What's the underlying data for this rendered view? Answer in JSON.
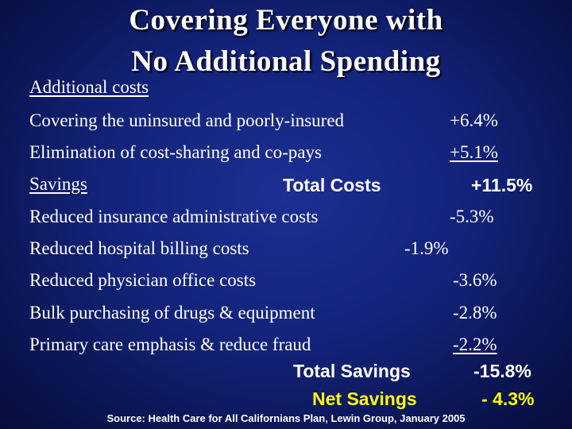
{
  "title_line1": "Covering Everyone with",
  "title_line2": "No Additional Spending",
  "additional_heading": "Additional costs",
  "costs": [
    {
      "label": "Covering the uninsured and poorly-insured",
      "value": "+6.4%"
    },
    {
      "label": "Elimination of cost-sharing and co-pays",
      "value": "+5.1%"
    }
  ],
  "savings_heading": "Savings",
  "total_costs_label": "Total Costs",
  "total_costs_value": "+11.5%",
  "savings": [
    {
      "label": "Reduced insurance administrative costs",
      "value": "-5.3%"
    },
    {
      "label": "Reduced hospital billing costs",
      "value": "-1.9%"
    },
    {
      "label": "Reduced physician office costs",
      "value": "-3.6%"
    },
    {
      "label": "Bulk purchasing of drugs & equipment",
      "value": "-2.8%"
    },
    {
      "label": "Primary care emphasis & reduce fraud",
      "value": "-2.2%"
    }
  ],
  "total_savings_label": "Total Savings",
  "total_savings_value": "-15.8%",
  "net_savings_label": "Net Savings",
  "net_savings_value": "- 4.3%",
  "source": "Source: Health Care for All Californians Plan, Lewin Group, January 2005",
  "colors": {
    "background": "#13237a",
    "text": "#ffffff",
    "accent_yellow": "#ffff00"
  }
}
